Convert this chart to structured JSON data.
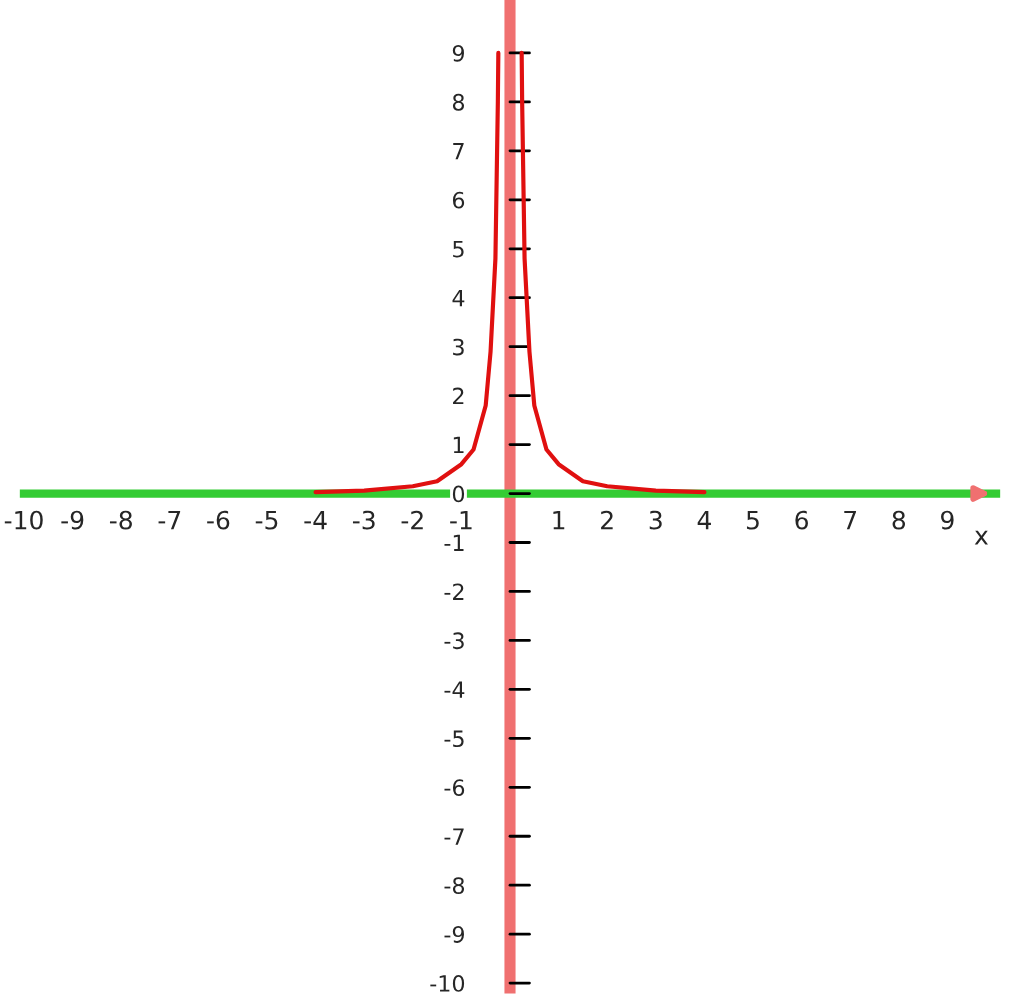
{
  "chart_data": {
    "type": "line",
    "xlabel": "x",
    "x": [
      -4,
      -3,
      -2,
      -1.5,
      -1,
      -0.75,
      -0.5,
      -0.4,
      -0.3,
      -0.25,
      -0.24,
      0,
      0.24,
      0.25,
      0.3,
      0.4,
      0.5,
      0.75,
      1,
      1.5,
      2,
      3,
      4
    ],
    "series": [
      {
        "color": "#e01010",
        "values": [
          0.03,
          0.06,
          0.15,
          0.25,
          0.6,
          0.9,
          1.8,
          2.9,
          4.8,
          8,
          9,
          null,
          9,
          8,
          4.8,
          2.9,
          1.8,
          0.9,
          0.6,
          0.25,
          0.15,
          0.06,
          0.03
        ]
      }
    ],
    "xlim": [
      -10,
      10
    ],
    "ylim": [
      -10.1,
      10
    ],
    "xticks": [
      -10,
      -9,
      -8,
      -7,
      -6,
      -5,
      -4,
      -3,
      -2,
      -1,
      1,
      2,
      3,
      4,
      5,
      6,
      7,
      8,
      9
    ],
    "yticks": [
      -10,
      -9,
      -8,
      -7,
      -6,
      -5,
      -4,
      -3,
      -2,
      -1,
      0,
      1,
      2,
      3,
      4,
      5,
      6,
      7,
      8,
      9
    ],
    "grid": false,
    "legend": false,
    "marker": "none",
    "line_style": "solid"
  }
}
